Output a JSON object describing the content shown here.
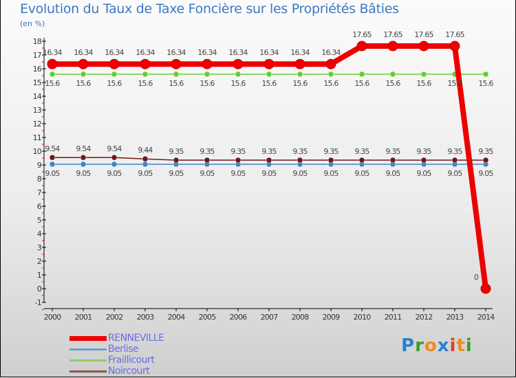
{
  "chart_data": {
    "type": "line",
    "title": "Evolution du Taux de Taxe Foncière sur les Propriétés Bâties",
    "ylabel": "(en %)",
    "xlabel": "",
    "x": [
      "2000",
      "2001",
      "2002",
      "2003",
      "2004",
      "2005",
      "2006",
      "2007",
      "2008",
      "2009",
      "2010",
      "2011",
      "2012",
      "2013",
      "2014"
    ],
    "ylim": [
      -1,
      18
    ],
    "yticks": [
      -1,
      0,
      1,
      2,
      3,
      4,
      5,
      6,
      7,
      8,
      9,
      10,
      11,
      12,
      13,
      14,
      15,
      16,
      17,
      18
    ],
    "grid": false,
    "legend_position": "bottom-left",
    "series": [
      {
        "name": "Berlise",
        "color": "#3a86c8",
        "values": [
          9.05,
          9.05,
          9.05,
          9.05,
          9.05,
          9.05,
          9.05,
          9.05,
          9.05,
          9.05,
          9.05,
          9.05,
          9.05,
          9.05,
          9.05
        ],
        "labels": [
          "9.05",
          "9.05",
          "9.05",
          "9.05",
          "9.05",
          "9.05",
          "9.05",
          "9.05",
          "9.05",
          "9.05",
          "9.05",
          "9.05",
          "9.05",
          "9.05",
          "9.05"
        ]
      },
      {
        "name": "Fraillicourt",
        "color": "#66cc33",
        "values": [
          15.6,
          15.6,
          15.6,
          15.6,
          15.6,
          15.6,
          15.6,
          15.6,
          15.6,
          15.6,
          15.6,
          15.6,
          15.6,
          15.6,
          15.6
        ],
        "labels": [
          "15.6",
          "15.6",
          "15.6",
          "15.6",
          "15.6",
          "15.6",
          "15.6",
          "15.6",
          "15.6",
          "15.6",
          "15.6",
          "15.6",
          "15.6",
          "15.6",
          "15.6"
        ]
      },
      {
        "name": "Noircourt",
        "color": "#6b1a1a",
        "values": [
          9.54,
          9.54,
          9.54,
          9.44,
          9.35,
          9.35,
          9.35,
          9.35,
          9.35,
          9.35,
          9.35,
          9.35,
          9.35,
          9.35,
          9.35
        ],
        "labels": [
          "9.54",
          "9.54",
          "9.54",
          "9.44",
          "9.35",
          "9.35",
          "9.35",
          "9.35",
          "9.35",
          "9.35",
          "9.35",
          "9.35",
          "9.35",
          "9.35",
          "9.35"
        ]
      },
      {
        "name": "RENNEVILLE",
        "color": "#ee0000",
        "values": [
          16.34,
          16.34,
          16.34,
          16.34,
          16.34,
          16.34,
          16.34,
          16.34,
          16.34,
          16.34,
          17.65,
          17.65,
          17.65,
          17.65,
          0
        ],
        "labels": [
          "16.34",
          "16.34",
          "16.34",
          "16.34",
          "16.34",
          "16.34",
          "16.34",
          "16.34",
          "16.34",
          "16.34",
          "17.65",
          "17.65",
          "17.65",
          "17.65",
          "0"
        ]
      }
    ],
    "legend_order": [
      "RENNEVILLE",
      "Berlise",
      "Fraillicourt",
      "Noircourt"
    ]
  },
  "logo": {
    "text": "Proxiti",
    "letters": [
      "P",
      "r",
      "o",
      "x",
      "i",
      "t",
      "i"
    ],
    "colors": [
      "#2a7fd0",
      "#33a02c",
      "#f08c1e",
      "#2a7fd0",
      "#e23c2c",
      "#f08c1e",
      "#33a02c"
    ]
  }
}
